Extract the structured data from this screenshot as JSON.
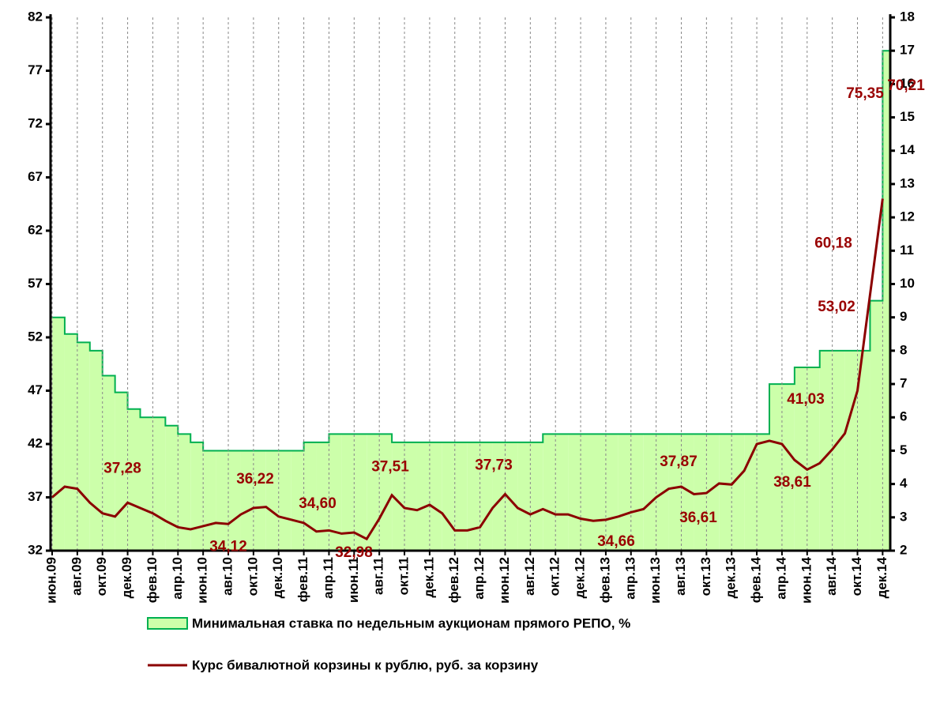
{
  "chart_data": {
    "type": "line",
    "categories": [
      "июн.09",
      null,
      "авг.09",
      null,
      "окт.09",
      null,
      "дек.09",
      null,
      "фев.10",
      null,
      "апр.10",
      null,
      "июн.10",
      null,
      "авг.10",
      null,
      "окт.10",
      null,
      "дек.10",
      null,
      "фев.11",
      null,
      "апр.11",
      null,
      "июн.11",
      null,
      "авг.11",
      null,
      "окт.11",
      null,
      "дек.11",
      null,
      "фев.12",
      null,
      "апр.12",
      null,
      "июн.12",
      null,
      "авг.12",
      null,
      "окт.12",
      null,
      "дек.12",
      null,
      "фев.13",
      null,
      "апр.13",
      null,
      "июн.13",
      null,
      "авг.13",
      null,
      "окт.13",
      null,
      "дек.13",
      null,
      "фев.14",
      null,
      "апр.14",
      null,
      "июн.14",
      null,
      "авг.14",
      null,
      "окт.14",
      null,
      "дек.14"
    ],
    "series": [
      {
        "name": "Минимальная ставка по недельным аукционам прямого РЕПО, %",
        "type": "area",
        "axis": "y2",
        "color": "#00b050",
        "fill": "#ccffaa",
        "values": [
          9.0,
          8.5,
          8.25,
          8.0,
          7.25,
          6.75,
          6.25,
          6.0,
          6.0,
          5.75,
          5.5,
          5.25,
          5.0,
          5.0,
          5.0,
          5.0,
          5.0,
          5.0,
          5.0,
          5.0,
          5.25,
          5.25,
          5.5,
          5.5,
          5.5,
          5.5,
          5.5,
          5.25,
          5.25,
          5.25,
          5.25,
          5.25,
          5.25,
          5.25,
          5.25,
          5.25,
          5.25,
          5.25,
          5.25,
          5.5,
          5.5,
          5.5,
          5.5,
          5.5,
          5.5,
          5.5,
          5.5,
          5.5,
          5.5,
          5.5,
          5.5,
          5.5,
          5.5,
          5.5,
          5.5,
          5.5,
          5.5,
          7.0,
          7.0,
          7.5,
          7.5,
          8.0,
          8.0,
          8.0,
          8.0,
          9.5,
          17.0
        ]
      },
      {
        "name": "Курс бивалютной корзины к рублю, руб. за корзину",
        "type": "line",
        "color": "#8b0000",
        "values": [
          37.0,
          38.0,
          37.8,
          36.5,
          35.5,
          35.2,
          36.5,
          36.0,
          35.5,
          34.8,
          34.2,
          34.0,
          34.3,
          34.6,
          34.5,
          35.4,
          36.0,
          36.1,
          35.2,
          34.9,
          34.6,
          33.8,
          33.9,
          33.6,
          33.7,
          33.1,
          35.0,
          37.2,
          36.0,
          35.8,
          36.3,
          35.5,
          33.9,
          33.9,
          34.2,
          36.0,
          37.3,
          36.0,
          35.4,
          35.9,
          35.4,
          35.4,
          35.0,
          34.8,
          34.9,
          35.2,
          35.6,
          35.9,
          37.0,
          37.8,
          38.0,
          37.3,
          37.4,
          38.3,
          38.2,
          39.5,
          42.0,
          42.3,
          42.0,
          40.5,
          39.6,
          40.2,
          41.5,
          43.0,
          47.0,
          56.0,
          65.0
        ]
      }
    ],
    "annotations": [
      {
        "label": "37,28",
        "value": 37.28
      },
      {
        "label": "36,22",
        "value": 36.22
      },
      {
        "label": "34,60",
        "value": 34.6
      },
      {
        "label": "34,12",
        "value": 34.12
      },
      {
        "label": "37,51",
        "value": 37.51
      },
      {
        "label": "37,73",
        "value": 37.73
      },
      {
        "label": "32,98",
        "value": 32.98
      },
      {
        "label": "34,66",
        "value": 34.66
      },
      {
        "label": "37,87",
        "value": 37.87
      },
      {
        "label": "36,61",
        "value": 36.61
      },
      {
        "label": "41,03",
        "value": 41.03
      },
      {
        "label": "38,61",
        "value": 38.61
      },
      {
        "label": "60,18",
        "value": 60.18
      },
      {
        "label": "53,02",
        "value": 53.02
      },
      {
        "label": "75,35",
        "value": 75.35
      },
      {
        "label": "70,21",
        "value": 70.21
      }
    ],
    "ylim": [
      32,
      82
    ],
    "yticks": [
      32,
      37,
      42,
      47,
      52,
      57,
      62,
      67,
      72,
      77,
      82
    ],
    "y2lim": [
      2,
      18
    ],
    "y2ticks": [
      2,
      3,
      4,
      5,
      6,
      7,
      8,
      9,
      10,
      11,
      12,
      13,
      14,
      15,
      16,
      17,
      18
    ],
    "grid": true
  }
}
